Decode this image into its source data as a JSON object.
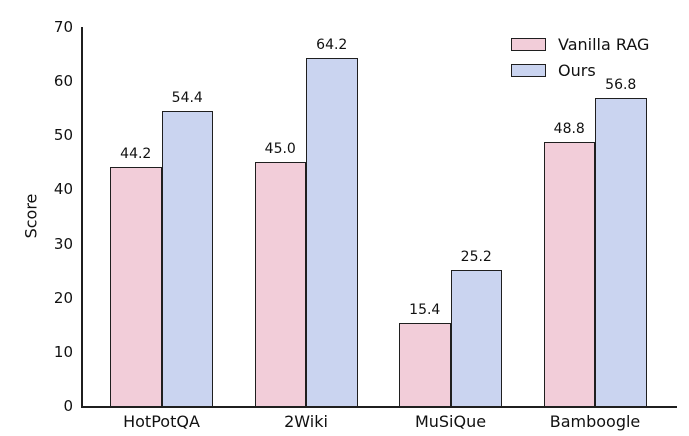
{
  "chart_data": {
    "type": "bar",
    "title": "",
    "categories": [
      "HotPotQA",
      "2Wiki",
      "MuSiQue",
      "Bamboogle"
    ],
    "series": [
      {
        "name": "Vanilla RAG",
        "color": "#F2CDD9",
        "values": [
          44.2,
          45.0,
          15.4,
          48.8
        ]
      },
      {
        "name": "Ours",
        "color": "#CAD4F0",
        "values": [
          54.4,
          64.2,
          25.2,
          56.8
        ]
      }
    ],
    "xlabel": "",
    "ylabel": "Score",
    "ylim": [
      0,
      70
    ],
    "yticks": [
      0,
      10,
      20,
      30,
      40,
      50,
      60,
      70
    ],
    "value_label_decimals": 1,
    "bar_edge_color": "#1f1f1f",
    "grid": false,
    "legend": {
      "position": "top-right",
      "frame": false
    }
  }
}
